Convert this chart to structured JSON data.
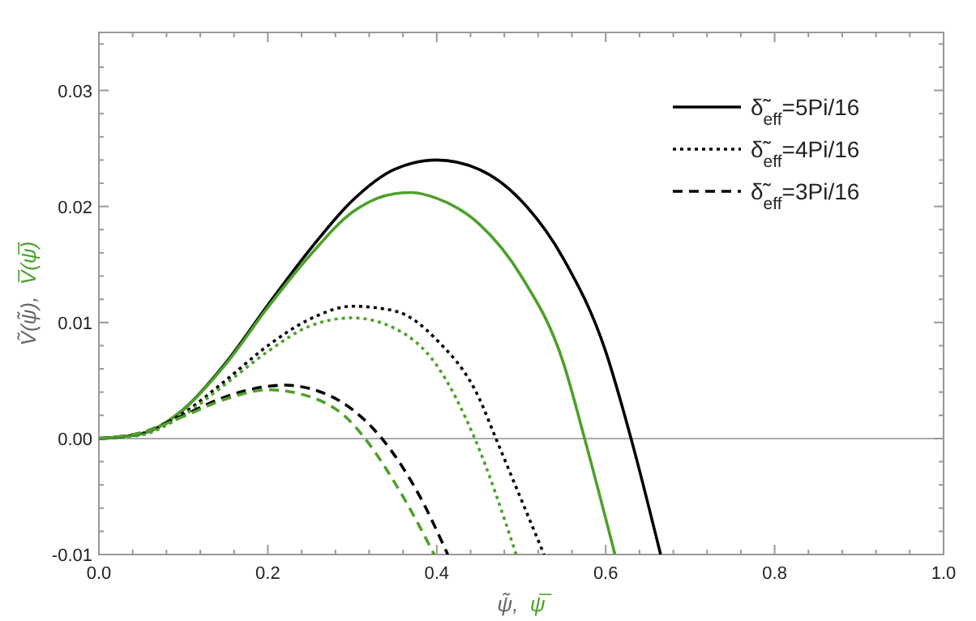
{
  "chart_data": {
    "type": "line",
    "xlabel": "ψ̃, ψ̅",
    "ylabel": "Ṽ(ψ̃), V̅(ψ̅)",
    "xlim": [
      0,
      1
    ],
    "ylim": [
      -0.01,
      0.035
    ],
    "xticks": [
      {
        "value": 0,
        "label": "0.0"
      },
      0.2,
      0.4,
      0.6,
      0.8,
      {
        "value": 1,
        "label": "1.0"
      }
    ],
    "yticks": [
      {
        "value": -0.01,
        "label": "-0.01"
      },
      {
        "value": 0,
        "label": "0.00"
      },
      {
        "value": 0.01,
        "label": "0.01"
      },
      {
        "value": 0.02,
        "label": "0.02"
      },
      {
        "value": 0.03,
        "label": "0.03"
      }
    ],
    "legend": "top right",
    "grid": false,
    "marker": "none",
    "ref_lines": [
      {
        "axis": "y",
        "value": 0,
        "color": "#aaaaaa"
      }
    ],
    "series": [
      {
        "name": "δ̃$_{eff}$=5Pi/16",
        "color": "#000000",
        "line_style": "solid",
        "x": [
          0,
          0.05,
          0.1,
          0.15,
          0.2,
          0.25,
          0.3,
          0.35,
          0.4,
          0.45,
          0.5,
          0.55,
          0.6,
          0.63,
          0.665
        ],
        "values": [
          0,
          0.0004,
          0.0025,
          0.0065,
          0.0115,
          0.0163,
          0.0205,
          0.0232,
          0.024,
          0.0232,
          0.0205,
          0.0155,
          0.0075,
          0,
          -0.01
        ]
      },
      {
        "color": "#4da12a",
        "line_style": "solid",
        "x": [
          0,
          0.05,
          0.1,
          0.15,
          0.2,
          0.25,
          0.3,
          0.35,
          0.37,
          0.4,
          0.45,
          0.5,
          0.55,
          0.575,
          0.611
        ],
        "values": [
          0,
          0.0004,
          0.0025,
          0.0064,
          0.0113,
          0.0158,
          0.0195,
          0.0211,
          0.0212,
          0.0207,
          0.0185,
          0.014,
          0.0065,
          0,
          -0.01
        ]
      },
      {
        "name": "δ̃$_{eff}$=4Pi/16",
        "color": "#000000",
        "line_style": "dotted",
        "x": [
          0,
          0.05,
          0.1,
          0.15,
          0.2,
          0.25,
          0.3,
          0.35,
          0.4,
          0.45,
          0.47,
          0.527
        ],
        "values": [
          0,
          0.0004,
          0.0022,
          0.005,
          0.008,
          0.0103,
          0.0114,
          0.011,
          0.0085,
          0.0035,
          0,
          -0.01
        ]
      },
      {
        "color": "#4da12a",
        "line_style": "dotted",
        "x": [
          0,
          0.05,
          0.1,
          0.15,
          0.2,
          0.25,
          0.3,
          0.35,
          0.4,
          0.445,
          0.494
        ],
        "values": [
          0,
          0.0003,
          0.002,
          0.0047,
          0.0075,
          0.0097,
          0.0104,
          0.0095,
          0.0063,
          0,
          -0.01
        ]
      },
      {
        "name": "δ̃$_{eff}$=3Pi/16",
        "color": "#000000",
        "line_style": "dashed",
        "x": [
          0,
          0.05,
          0.1,
          0.15,
          0.2,
          0.22,
          0.25,
          0.3,
          0.335,
          0.38,
          0.413
        ],
        "values": [
          0,
          0.0005,
          0.002,
          0.0036,
          0.0045,
          0.0046,
          0.0043,
          0.0025,
          0,
          -0.005,
          -0.01
        ]
      },
      {
        "color": "#4da12a",
        "line_style": "dashed",
        "x": [
          0,
          0.05,
          0.1,
          0.15,
          0.2,
          0.25,
          0.3,
          0.315,
          0.36,
          0.397
        ],
        "values": [
          0,
          0.0005,
          0.0019,
          0.0034,
          0.0042,
          0.0036,
          0.0013,
          0,
          -0.005,
          -0.01
        ]
      }
    ]
  }
}
